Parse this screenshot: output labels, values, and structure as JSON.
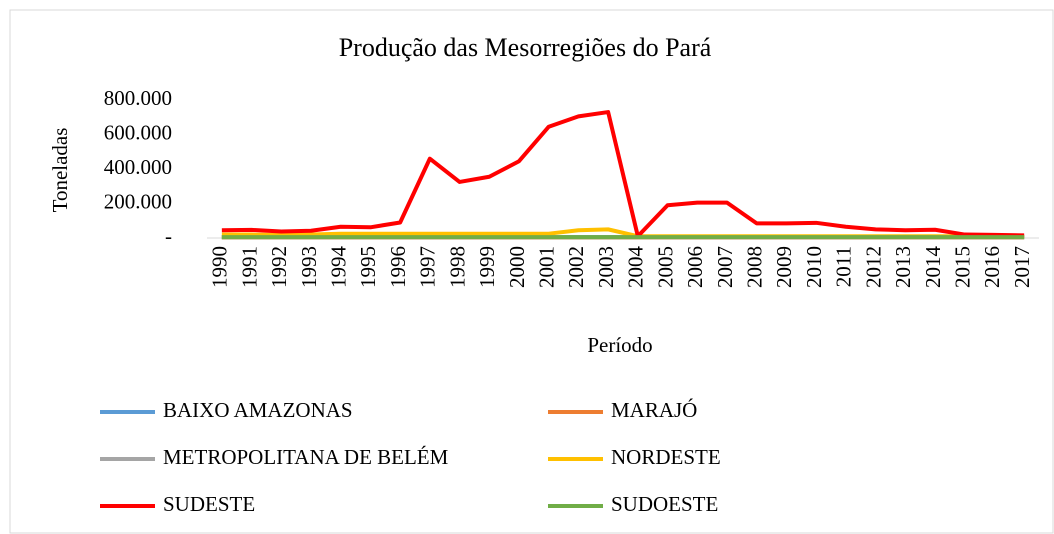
{
  "chart_data": {
    "type": "line",
    "title": "Produção das Mesorregiões do Pará",
    "y_label": "Toneladas",
    "x_label": "Período",
    "categories": [
      "1990",
      "1991",
      "1992",
      "1993",
      "1994",
      "1995",
      "1996",
      "1997",
      "1998",
      "1999",
      "2000",
      "2001",
      "2002",
      "2003",
      "2004",
      "2005",
      "2006",
      "2007",
      "2008",
      "2009",
      "2010",
      "2011",
      "2012",
      "2013",
      "2014",
      "2015",
      "2016",
      "2017"
    ],
    "ylim": [
      0,
      800000
    ],
    "yticks": [
      {
        "value": 0,
        "label": "-"
      },
      {
        "value": 200000,
        "label": "200.000"
      },
      {
        "value": 400000,
        "label": "400.000"
      },
      {
        "value": 600000,
        "label": "600.000"
      },
      {
        "value": 800000,
        "label": "800.000"
      }
    ],
    "grid": false,
    "legend": "bottom",
    "series": [
      {
        "name": "BAIXO AMAZONAS",
        "color": "#5b9bd5",
        "values": [
          5000,
          5000,
          5000,
          5000,
          5000,
          5000,
          5000,
          5000,
          5000,
          5000,
          5000,
          5000,
          5000,
          5000,
          5000,
          5000,
          5000,
          5000,
          5000,
          5000,
          5000,
          5000,
          5000,
          5000,
          5000,
          5000,
          5000,
          5000
        ]
      },
      {
        "name": "MARAJÓ",
        "color": "#ed7d31",
        "values": [
          3000,
          3000,
          3000,
          3000,
          3000,
          3000,
          3000,
          3000,
          3000,
          3000,
          3000,
          3000,
          3000,
          3000,
          3000,
          3000,
          3000,
          3000,
          3000,
          3000,
          3000,
          3000,
          3000,
          3000,
          3000,
          3000,
          3000,
          3000
        ]
      },
      {
        "name": "METROPOLITANA DE BELÉM",
        "color": "#a5a5a5",
        "values": [
          4000,
          4000,
          4000,
          4000,
          4000,
          4000,
          4000,
          4000,
          4000,
          4000,
          4000,
          4000,
          4000,
          4000,
          4000,
          4000,
          4000,
          4000,
          4000,
          4000,
          4000,
          4000,
          4000,
          4000,
          4000,
          4000,
          4000,
          4000
        ]
      },
      {
        "name": "NORDESTE",
        "color": "#ffc000",
        "values": [
          20000,
          20000,
          18000,
          20000,
          25000,
          25000,
          25000,
          25000,
          25000,
          25000,
          25000,
          25000,
          45000,
          50000,
          10000,
          10000,
          10000,
          10000,
          10000,
          10000,
          10000,
          10000,
          10000,
          10000,
          10000,
          10000,
          10000,
          10000
        ]
      },
      {
        "name": "SUDESTE",
        "color": "#ff0000",
        "values": [
          45000,
          47000,
          38000,
          42000,
          65000,
          62000,
          90000,
          460000,
          325000,
          355000,
          445000,
          645000,
          705000,
          730000,
          10000,
          190000,
          205000,
          205000,
          85000,
          85000,
          88000,
          65000,
          50000,
          45000,
          48000,
          20000,
          18000,
          15000
        ]
      },
      {
        "name": "SUDOESTE",
        "color": "#70ad47",
        "values": [
          5000,
          5000,
          5000,
          5000,
          5000,
          5000,
          5000,
          5000,
          5000,
          5000,
          5000,
          5000,
          5000,
          5000,
          5000,
          5000,
          5000,
          5000,
          5000,
          5000,
          5000,
          5000,
          5000,
          5000,
          5000,
          5000,
          5000,
          5000
        ]
      }
    ]
  }
}
